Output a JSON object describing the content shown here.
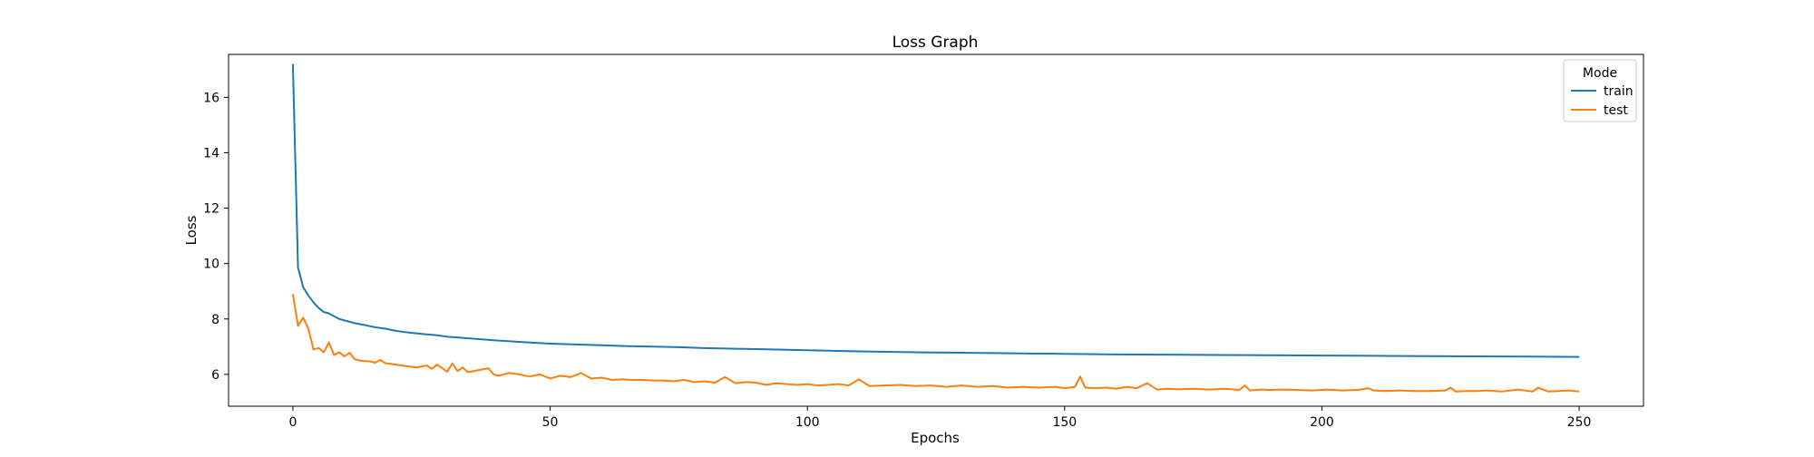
{
  "chart_data": {
    "type": "line",
    "title": "Loss Graph",
    "xlabel": "Epochs",
    "ylabel": "Loss",
    "xlim": [
      -12.5,
      262.5
    ],
    "ylim": [
      4.85,
      17.55
    ],
    "xticks": [
      0,
      50,
      100,
      150,
      200,
      250
    ],
    "yticks": [
      6,
      8,
      10,
      12,
      14,
      16
    ],
    "grid": false,
    "legend": {
      "title": "Mode",
      "placement": "top-right"
    },
    "series": [
      {
        "name": "train",
        "color": "#1f77b4",
        "x": [
          0,
          1,
          2,
          3,
          4,
          5,
          6,
          7,
          8,
          9,
          10,
          12,
          14,
          16,
          18,
          20,
          22,
          25,
          28,
          30,
          35,
          40,
          45,
          50,
          55,
          60,
          65,
          70,
          75,
          80,
          85,
          90,
          95,
          100,
          110,
          120,
          130,
          140,
          150,
          160,
          170,
          180,
          190,
          200,
          210,
          220,
          230,
          240,
          250
        ],
        "y": [
          17.2,
          9.85,
          9.15,
          8.85,
          8.6,
          8.4,
          8.25,
          8.2,
          8.1,
          8.0,
          7.95,
          7.85,
          7.78,
          7.7,
          7.65,
          7.57,
          7.52,
          7.46,
          7.41,
          7.36,
          7.29,
          7.22,
          7.16,
          7.11,
          7.08,
          7.05,
          7.02,
          7.0,
          6.98,
          6.95,
          6.93,
          6.91,
          6.89,
          6.87,
          6.83,
          6.8,
          6.78,
          6.76,
          6.74,
          6.72,
          6.71,
          6.7,
          6.69,
          6.68,
          6.67,
          6.66,
          6.65,
          6.64,
          6.63
        ]
      },
      {
        "name": "test",
        "color": "#ff7f0e",
        "x": [
          0,
          1,
          2,
          3,
          4,
          5,
          6,
          7,
          8,
          9,
          10,
          11,
          12,
          13,
          14,
          15,
          16,
          17,
          18,
          19,
          20,
          22,
          24,
          26,
          27,
          28,
          30,
          31,
          32,
          33,
          34,
          36,
          38,
          39,
          40,
          42,
          44,
          46,
          48,
          50,
          52,
          54,
          56,
          58,
          60,
          62,
          64,
          66,
          68,
          70,
          72,
          74,
          76,
          78,
          80,
          82,
          84,
          86,
          88,
          90,
          92,
          94,
          96,
          98,
          100,
          102,
          104,
          106,
          108,
          110,
          112,
          115,
          118,
          121,
          124,
          127,
          130,
          133,
          136,
          139,
          142,
          145,
          148,
          150,
          152,
          153,
          154,
          156,
          158,
          160,
          162,
          164,
          166,
          168,
          170,
          172,
          175,
          178,
          181,
          184,
          185,
          186,
          188,
          190,
          192,
          195,
          198,
          201,
          204,
          207,
          209,
          210,
          212,
          215,
          218,
          221,
          224,
          225,
          226,
          228,
          230,
          232,
          235,
          238,
          241,
          242,
          244,
          246,
          248,
          250
        ],
        "y": [
          8.9,
          7.75,
          8.05,
          7.65,
          6.9,
          6.95,
          6.8,
          7.15,
          6.7,
          6.8,
          6.65,
          6.78,
          6.55,
          6.5,
          6.48,
          6.47,
          6.42,
          6.52,
          6.4,
          6.38,
          6.35,
          6.3,
          6.25,
          6.32,
          6.2,
          6.35,
          6.1,
          6.4,
          6.12,
          6.25,
          6.08,
          6.15,
          6.22,
          6.0,
          5.95,
          6.05,
          6.0,
          5.92,
          6.0,
          5.85,
          5.95,
          5.9,
          6.05,
          5.85,
          5.88,
          5.8,
          5.82,
          5.8,
          5.8,
          5.78,
          5.78,
          5.75,
          5.8,
          5.72,
          5.75,
          5.7,
          5.9,
          5.68,
          5.72,
          5.7,
          5.62,
          5.68,
          5.65,
          5.62,
          5.65,
          5.6,
          5.62,
          5.65,
          5.6,
          5.82,
          5.58,
          5.6,
          5.62,
          5.58,
          5.6,
          5.55,
          5.6,
          5.55,
          5.58,
          5.52,
          5.55,
          5.52,
          5.55,
          5.5,
          5.55,
          5.92,
          5.52,
          5.5,
          5.52,
          5.48,
          5.55,
          5.5,
          5.68,
          5.45,
          5.48,
          5.46,
          5.48,
          5.45,
          5.48,
          5.44,
          5.6,
          5.42,
          5.45,
          5.44,
          5.45,
          5.44,
          5.42,
          5.45,
          5.42,
          5.44,
          5.5,
          5.42,
          5.4,
          5.42,
          5.4,
          5.4,
          5.42,
          5.52,
          5.38,
          5.4,
          5.4,
          5.42,
          5.38,
          5.45,
          5.38,
          5.52,
          5.38,
          5.4,
          5.42,
          5.38
        ]
      }
    ]
  }
}
